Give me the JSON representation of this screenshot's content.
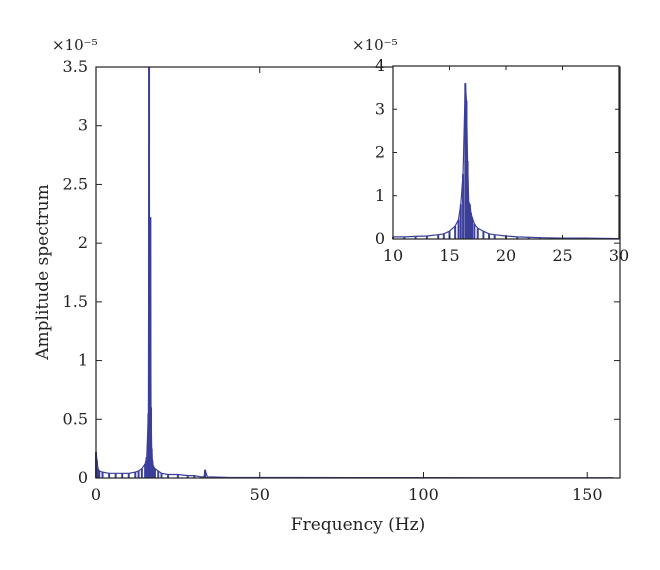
{
  "chart_data": [
    {
      "type": "line",
      "role": "main",
      "xlabel": "Frequency (Hz)",
      "ylabel": "Amplitude spectrum",
      "y_multiplier": "×10⁻⁵",
      "xlim": [
        0,
        160
      ],
      "ylim": [
        0,
        3.5
      ],
      "xticks": [
        0,
        50,
        100,
        150
      ],
      "xtick_labels": [
        "0",
        "50",
        "100",
        "150"
      ],
      "yticks": [
        0,
        0.5,
        1,
        1.5,
        2,
        2.5,
        3,
        3.5
      ],
      "ytick_labels": [
        "0",
        "0.5",
        "1",
        "1.5",
        "2",
        "2.5",
        "3",
        "3.5"
      ],
      "grid": false,
      "color": "#3b3f9a",
      "series": [
        {
          "x": [
            0,
            0.3,
            0.6,
            1,
            2,
            4,
            6,
            8,
            10,
            12,
            13,
            14,
            15,
            15.5,
            16,
            16.2,
            16.4,
            16.6,
            16.8,
            17,
            17.2,
            17.5,
            18,
            19,
            20,
            22,
            25,
            28,
            30,
            32,
            33,
            33.3,
            34,
            40,
            60,
            80,
            100,
            120,
            140,
            158
          ],
          "y": [
            0.22,
            0.15,
            0.08,
            0.06,
            0.05,
            0.04,
            0.04,
            0.04,
            0.04,
            0.05,
            0.06,
            0.08,
            0.12,
            0.18,
            0.55,
            3.5,
            1.4,
            2.22,
            0.6,
            0.25,
            0.15,
            0.1,
            0.08,
            0.06,
            0.04,
            0.03,
            0.03,
            0.02,
            0.02,
            0.01,
            0.01,
            0.07,
            0.01,
            0.005,
            0.004,
            0.003,
            0.003,
            0.002,
            0.002,
            0.002
          ]
        }
      ]
    },
    {
      "type": "line",
      "role": "inset",
      "y_multiplier": "×10⁻⁵",
      "xlim": [
        10,
        30
      ],
      "ylim": [
        0,
        4
      ],
      "xticks": [
        10,
        15,
        20,
        25,
        30
      ],
      "xtick_labels": [
        "10",
        "15",
        "20",
        "25",
        "30"
      ],
      "yticks": [
        0,
        1,
        2,
        3,
        4
      ],
      "ytick_labels": [
        "0",
        "1",
        "2",
        "3",
        "4"
      ],
      "grid": false,
      "color": "#3b3f9a",
      "series": [
        {
          "x": [
            10,
            11,
            12,
            13,
            14,
            14.5,
            15,
            15.5,
            15.8,
            16,
            16.2,
            16.4,
            16.5,
            16.6,
            16.7,
            16.8,
            16.9,
            17,
            17.2,
            17.5,
            18,
            18.5,
            19,
            20,
            21,
            22,
            23,
            25,
            27,
            30
          ],
          "y": [
            0.05,
            0.05,
            0.06,
            0.07,
            0.1,
            0.12,
            0.18,
            0.3,
            0.45,
            0.8,
            1.5,
            3.6,
            3.2,
            1.8,
            0.85,
            0.8,
            0.6,
            0.5,
            0.35,
            0.25,
            0.18,
            0.12,
            0.1,
            0.07,
            0.05,
            0.04,
            0.03,
            0.02,
            0.02,
            0.01
          ]
        }
      ]
    }
  ]
}
